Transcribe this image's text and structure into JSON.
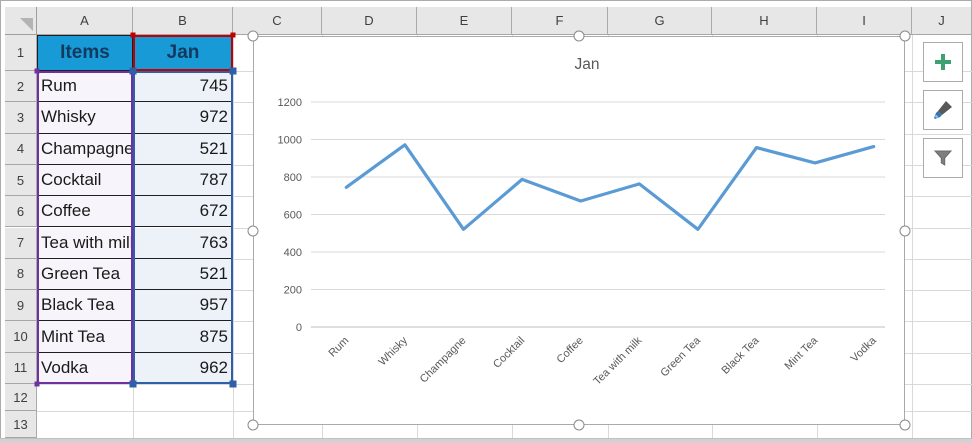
{
  "sheet": {
    "column_headers": [
      "A",
      "B",
      "C",
      "D",
      "E",
      "F",
      "G",
      "H",
      "I",
      "J"
    ],
    "row_headers": [
      "1",
      "2",
      "3",
      "4",
      "5",
      "6",
      "7",
      "8",
      "9",
      "10",
      "11",
      "12",
      "13"
    ]
  },
  "table": {
    "items_label": "Items",
    "value_label": "Jan"
  },
  "chart_data": {
    "type": "line",
    "title": "Jan",
    "categories": [
      "Rum",
      "Whisky",
      "Champagne",
      "Cocktail",
      "Coffee",
      "Tea with milk",
      "Green Tea",
      "Black Tea",
      "Mint Tea",
      "Vodka"
    ],
    "values": [
      745,
      972,
      521,
      787,
      672,
      763,
      521,
      957,
      875,
      962
    ],
    "ylim": [
      0,
      1200
    ],
    "ytick_step": 200,
    "grid": "on",
    "legend": "none",
    "xlabel": "",
    "ylabel": ""
  },
  "chart_buttons": [
    {
      "name": "chart-elements-button",
      "icon": "plus-icon"
    },
    {
      "name": "chart-styles-button",
      "icon": "paintbrush-icon"
    },
    {
      "name": "chart-filters-button",
      "icon": "funnel-icon"
    }
  ],
  "colors": {
    "table_header_fill": "#189AD6",
    "table_header_text": "#14395F",
    "item_cell_fill": "#F7F5FB",
    "value_cell_fill": "#EDF2F9",
    "series_line": "#5B9BD5",
    "category_range_outline": "#7030A0",
    "value_range_outline": "#2E5FA8",
    "series_name_outline": "#C00000",
    "add_button_green": "#3FA172",
    "brush_blue": "#2E75B6",
    "icon_gray": "#7F7F7F",
    "chart_text": "#595959"
  }
}
